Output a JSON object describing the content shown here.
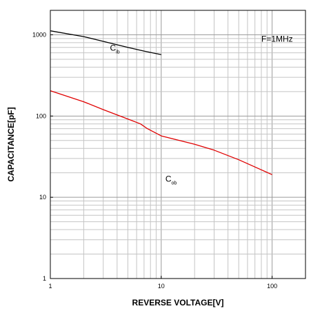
{
  "chart_data": {
    "type": "line",
    "title": "",
    "xlabel": "REVERSE VOLTAGE[V]",
    "ylabel": "CAPACITANCE[pF]",
    "x_scale": "log",
    "y_scale": "log",
    "xlim": [
      1,
      200
    ],
    "ylim": [
      1,
      2000
    ],
    "grid": true,
    "x_ticks": [
      {
        "value": 1,
        "label": "1"
      },
      {
        "value": 10,
        "label": "10"
      },
      {
        "value": 100,
        "label": "100"
      }
    ],
    "y_ticks": [
      {
        "value": 1,
        "label": "1"
      },
      {
        "value": 10,
        "label": "10"
      },
      {
        "value": 100,
        "label": "100"
      },
      {
        "value": 1000,
        "label": "1000"
      }
    ],
    "series": [
      {
        "name": "Cib",
        "color": "#000000",
        "points": [
          [
            1,
            1120
          ],
          [
            2,
            950
          ],
          [
            3,
            830
          ],
          [
            5,
            700
          ],
          [
            7,
            630
          ],
          [
            10,
            570
          ]
        ]
      },
      {
        "name": "Cob",
        "color": "#e00000",
        "points": [
          [
            1,
            205
          ],
          [
            2,
            150
          ],
          [
            3,
            120
          ],
          [
            5,
            92
          ],
          [
            6.5,
            80
          ],
          [
            7.5,
            70
          ],
          [
            10,
            57
          ],
          [
            20,
            45
          ],
          [
            30,
            38
          ],
          [
            50,
            29
          ],
          [
            100,
            19
          ]
        ]
      }
    ],
    "annotations": [
      {
        "name": "frequency-label",
        "text": "F=1MHz"
      },
      {
        "name": "cib-label",
        "main": "C",
        "sub": "ib"
      },
      {
        "name": "cob-label",
        "main": "C",
        "sub": "ob"
      }
    ]
  }
}
